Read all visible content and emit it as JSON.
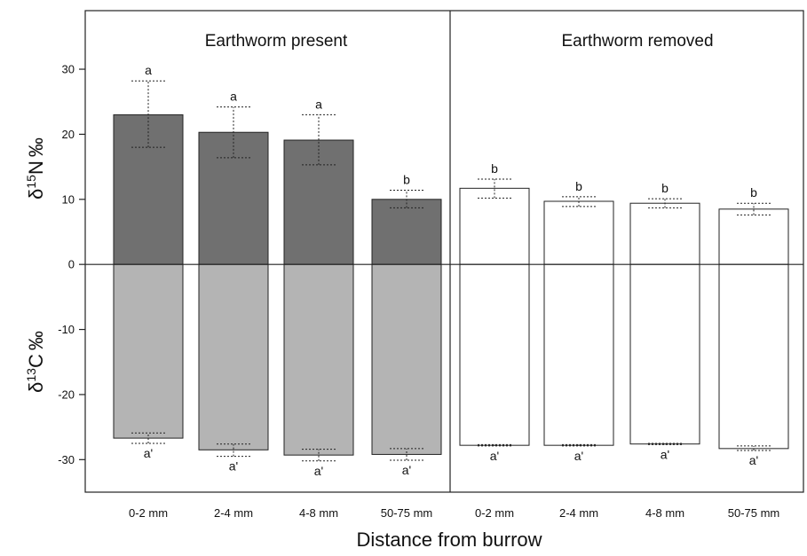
{
  "chart_data": {
    "type": "bar",
    "xlabel": "Distance from burrow",
    "ylabel_top": {
      "symbol": "δ",
      "sup": "15",
      "element": "N",
      "unit": "‰"
    },
    "ylabel_bottom": {
      "symbol": "δ",
      "sup": "13",
      "element": "C",
      "unit": "‰"
    },
    "ylim": [
      -35,
      39
    ],
    "yticks": [
      30,
      20,
      10,
      0,
      -10,
      -20,
      -30
    ],
    "zero_line": true,
    "grid": false,
    "legend": "none",
    "panels": [
      {
        "title": "Earthworm present",
        "categories": [
          "0-2 mm",
          "2-4 mm",
          "4-8 mm",
          "50-75 mm"
        ],
        "colors": {
          "top": "#707070",
          "bottom": "#b4b4b4"
        },
        "series": [
          {
            "values": [
              23.0,
              20.3,
              19.1,
              10.0
            ],
            "error_low": [
              18.0,
              16.4,
              15.3,
              8.7
            ],
            "error_high": [
              28.2,
              24.2,
              23.0,
              11.4
            ],
            "letters": [
              "a",
              "a",
              "a",
              "b"
            ]
          },
          {
            "values": [
              -26.7,
              -28.5,
              -29.3,
              -29.2
            ],
            "error_low": [
              -27.5,
              -29.5,
              -30.2,
              -30.1
            ],
            "error_high": [
              -25.9,
              -27.6,
              -28.4,
              -28.3
            ],
            "letters": [
              "a'",
              "a'",
              "a'",
              "a'"
            ]
          }
        ]
      },
      {
        "title": "Earthworm removed",
        "categories": [
          "0-2 mm",
          "2-4 mm",
          "4-8 mm",
          "50-75 mm"
        ],
        "colors": {
          "top": "#ffffff",
          "bottom": "#ffffff"
        },
        "series": [
          {
            "values": [
              11.7,
              9.7,
              9.4,
              8.5
            ],
            "error_low": [
              10.2,
              8.9,
              8.7,
              7.6
            ],
            "error_high": [
              13.1,
              10.4,
              10.1,
              9.4
            ],
            "letters": [
              "b",
              "b",
              "b",
              "b"
            ]
          },
          {
            "values": [
              -27.8,
              -27.8,
              -27.6,
              -28.3
            ],
            "error_low": [
              -27.9,
              -27.9,
              -27.7,
              -28.6
            ],
            "error_high": [
              -27.7,
              -27.7,
              -27.5,
              -27.9
            ],
            "letters": [
              "a'",
              "a'",
              "a'",
              "a'"
            ]
          }
        ]
      }
    ]
  }
}
